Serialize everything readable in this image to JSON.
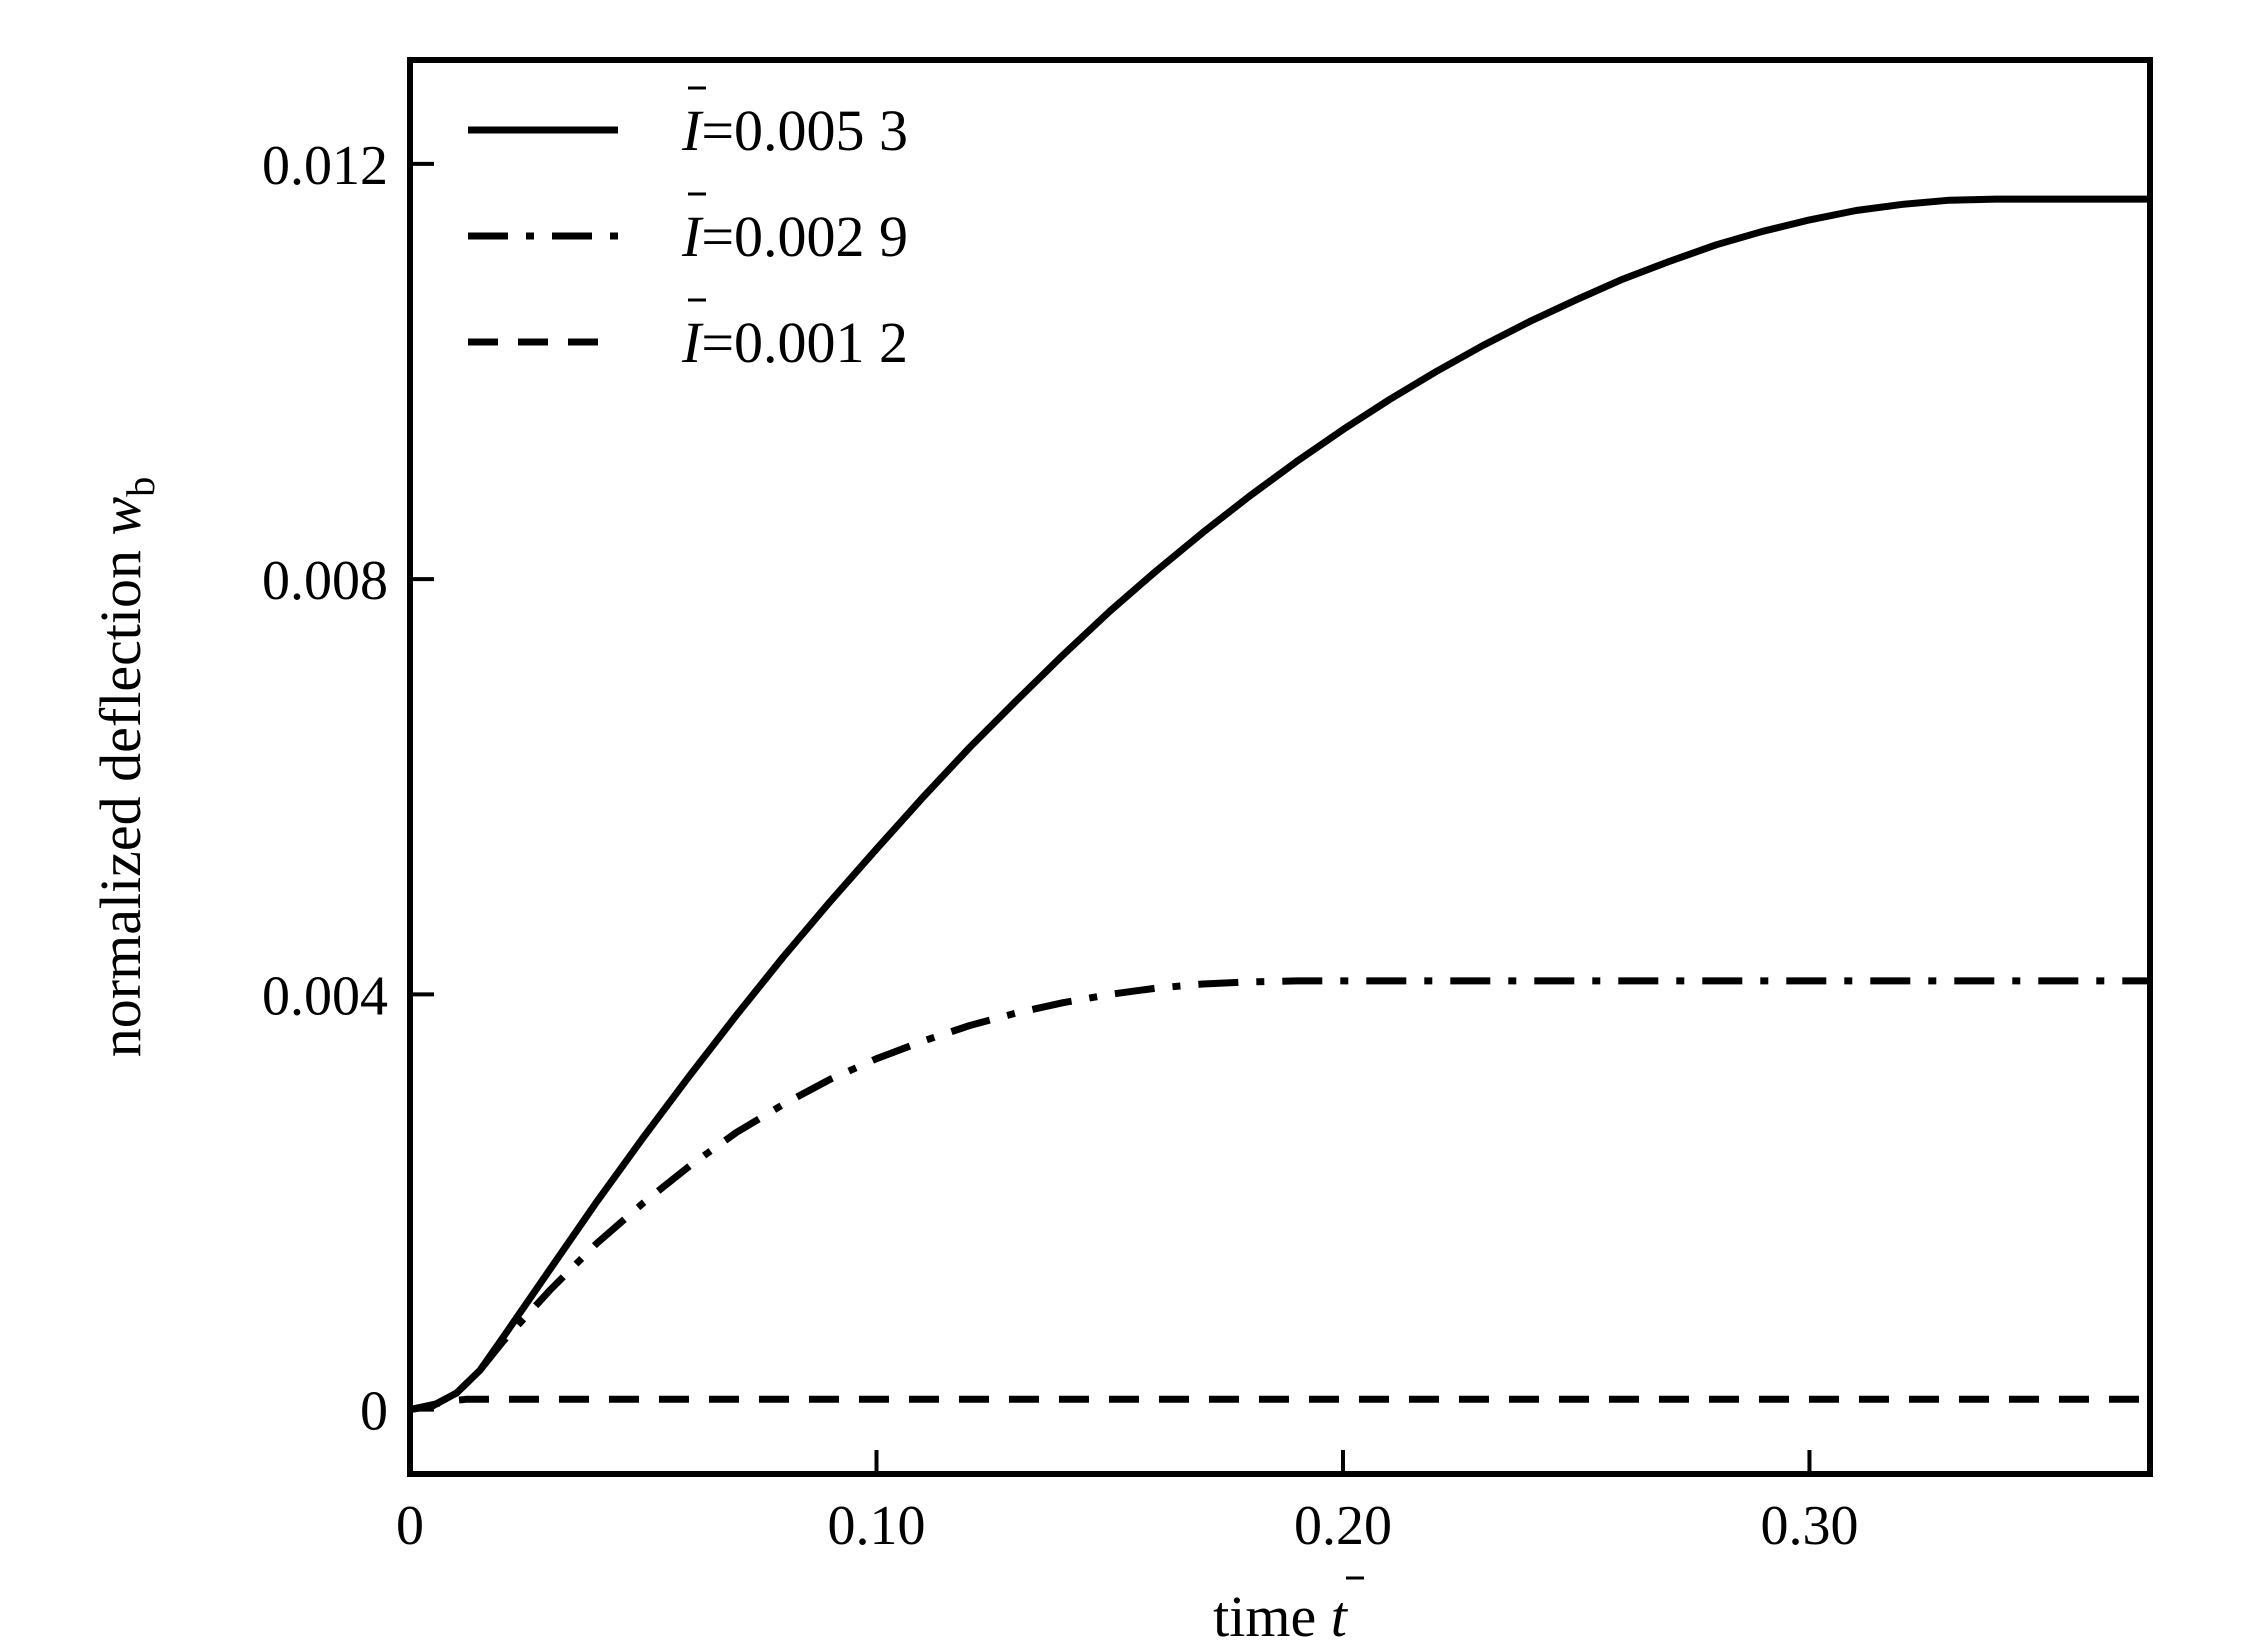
{
  "chart_data": {
    "type": "line",
    "xlabel": "time",
    "xlabel_symbol": "t",
    "ylabel": "normalized deflection",
    "ylabel_symbol": "w",
    "ylabel_subscript": "b",
    "xlim": [
      0,
      0.373
    ],
    "ylim": [
      -0.00062,
      0.013
    ],
    "xticks": [
      {
        "value": 0,
        "label": "0"
      },
      {
        "value": 0.1,
        "label": "0.10"
      },
      {
        "value": 0.2,
        "label": "0.20"
      },
      {
        "value": 0.3,
        "label": "0.30"
      }
    ],
    "yticks": [
      {
        "value": 0,
        "label": "0"
      },
      {
        "value": 0.004,
        "label": "0.004"
      },
      {
        "value": 0.008,
        "label": "0.008"
      },
      {
        "value": 0.012,
        "label": "0.012"
      }
    ],
    "grid": false,
    "legend_position": "top-left",
    "legend_symbol": "I",
    "series": [
      {
        "name": "=0.005 3",
        "style": "solid",
        "color": "#000000",
        "points": [
          [
            0,
            0
          ],
          [
            0.005,
            4e-05
          ],
          [
            0.01,
            0.00016
          ],
          [
            0.015,
            0.00038
          ],
          [
            0.02,
            0.0007
          ],
          [
            0.03,
            0.00135
          ],
          [
            0.04,
            0.002
          ],
          [
            0.05,
            0.00262
          ],
          [
            0.06,
            0.00322
          ],
          [
            0.07,
            0.0038
          ],
          [
            0.08,
            0.00436
          ],
          [
            0.09,
            0.00489
          ],
          [
            0.1,
            0.0054
          ],
          [
            0.11,
            0.0059
          ],
          [
            0.12,
            0.00638
          ],
          [
            0.13,
            0.00683
          ],
          [
            0.14,
            0.00727
          ],
          [
            0.15,
            0.00769
          ],
          [
            0.16,
            0.00808
          ],
          [
            0.17,
            0.00845
          ],
          [
            0.18,
            0.0088
          ],
          [
            0.19,
            0.00913
          ],
          [
            0.2,
            0.00944
          ],
          [
            0.21,
            0.00973
          ],
          [
            0.22,
            0.01
          ],
          [
            0.23,
            0.01025
          ],
          [
            0.24,
            0.01048
          ],
          [
            0.25,
            0.01069
          ],
          [
            0.26,
            0.01089
          ],
          [
            0.27,
            0.01106
          ],
          [
            0.28,
            0.01122
          ],
          [
            0.29,
            0.01135
          ],
          [
            0.3,
            0.01146
          ],
          [
            0.31,
            0.01155
          ],
          [
            0.32,
            0.01161
          ],
          [
            0.33,
            0.01165
          ],
          [
            0.34,
            0.01166
          ],
          [
            0.373,
            0.01166
          ]
        ]
      },
      {
        "name": "=0.002 9",
        "style": "dashdot",
        "color": "#000000",
        "points": [
          [
            0,
            0
          ],
          [
            0.005,
            4e-05
          ],
          [
            0.01,
            0.00016
          ],
          [
            0.015,
            0.00038
          ],
          [
            0.02,
            0.00066
          ],
          [
            0.03,
            0.00115
          ],
          [
            0.04,
            0.0016
          ],
          [
            0.05,
            0.00199
          ],
          [
            0.06,
            0.00235
          ],
          [
            0.07,
            0.00267
          ],
          [
            0.08,
            0.00294
          ],
          [
            0.09,
            0.00318
          ],
          [
            0.1,
            0.00338
          ],
          [
            0.11,
            0.00355
          ],
          [
            0.12,
            0.0037
          ],
          [
            0.13,
            0.00382
          ],
          [
            0.14,
            0.00392
          ],
          [
            0.15,
            0.004
          ],
          [
            0.16,
            0.00406
          ],
          [
            0.17,
            0.0041
          ],
          [
            0.18,
            0.00412
          ],
          [
            0.19,
            0.00413
          ],
          [
            0.2,
            0.00413
          ],
          [
            0.373,
            0.00413
          ]
        ]
      },
      {
        "name": "=0.001 2",
        "style": "dashed",
        "color": "#000000",
        "points": [
          [
            0,
            0
          ],
          [
            0.004,
            4e-05
          ],
          [
            0.008,
            8e-05
          ],
          [
            0.012,
            0.0001
          ],
          [
            0.373,
            0.0001
          ]
        ]
      }
    ]
  }
}
